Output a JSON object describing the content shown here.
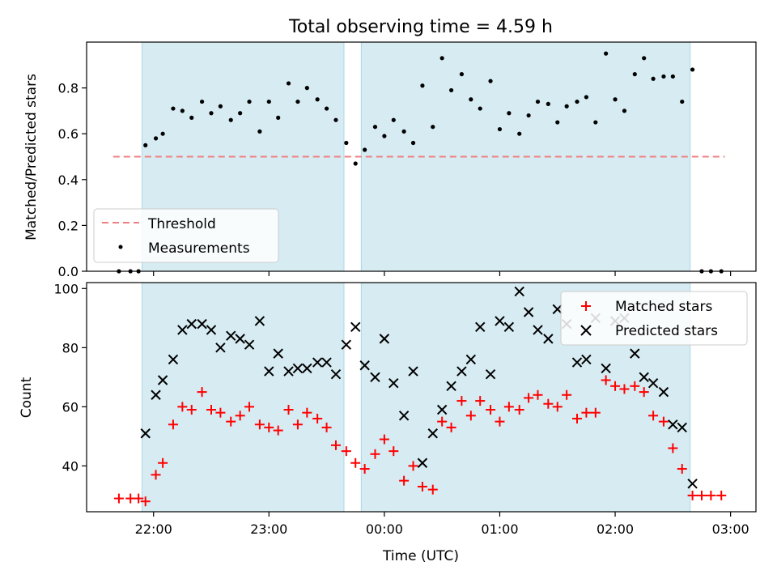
{
  "chart_data": [
    {
      "type": "scatter",
      "title": "Total observing time = 4.59 h",
      "ylabel": "Matched/Predicted stars",
      "xlabel": "",
      "ylim": [
        0,
        1
      ],
      "yticks": [
        0.0,
        0.2,
        0.4,
        0.6,
        0.8
      ],
      "ytick_labels": [
        "0.0",
        "0.2",
        "0.4",
        "0.6",
        "0.8"
      ],
      "grid": false,
      "legend_position": "lower-left",
      "shaded_intervals_hours": [
        [
          21.9,
          23.65
        ],
        [
          23.8,
          26.65
        ]
      ],
      "threshold": {
        "name": "Threshold",
        "value": 0.5,
        "x_range": [
          21.65,
          26.95
        ],
        "color": "#f08080"
      },
      "series": [
        {
          "name": "Measurements",
          "marker": "dot",
          "color": "#000000",
          "x": [
            21.7,
            21.8,
            21.87,
            21.93,
            22.02,
            22.08,
            22.17,
            22.25,
            22.33,
            22.42,
            22.5,
            22.58,
            22.67,
            22.75,
            22.83,
            22.92,
            23.0,
            23.08,
            23.17,
            23.25,
            23.33,
            23.42,
            23.5,
            23.58,
            23.67,
            23.75,
            23.83,
            23.92,
            24.0,
            24.08,
            24.17,
            24.25,
            24.33,
            24.42,
            24.5,
            24.58,
            24.67,
            24.75,
            24.83,
            24.92,
            25.0,
            25.08,
            25.17,
            25.25,
            25.33,
            25.42,
            25.5,
            25.58,
            25.67,
            25.75,
            25.83,
            25.92,
            26.0,
            26.08,
            26.17,
            26.25,
            26.33,
            26.42,
            26.5,
            26.58,
            26.67,
            26.75,
            26.83,
            26.92
          ],
          "y": [
            0.0,
            0.0,
            0.0,
            0.55,
            0.58,
            0.6,
            0.71,
            0.7,
            0.67,
            0.74,
            0.69,
            0.72,
            0.66,
            0.69,
            0.74,
            0.61,
            0.74,
            0.67,
            0.82,
            0.74,
            0.8,
            0.75,
            0.71,
            0.66,
            0.56,
            0.47,
            0.53,
            0.63,
            0.59,
            0.66,
            0.61,
            0.56,
            0.81,
            0.63,
            0.93,
            0.79,
            0.86,
            0.75,
            0.71,
            0.83,
            0.62,
            0.69,
            0.6,
            0.68,
            0.74,
            0.73,
            0.65,
            0.72,
            0.74,
            0.76,
            0.65,
            0.95,
            0.75,
            0.7,
            0.86,
            0.93,
            0.84,
            0.85,
            0.85,
            0.74,
            0.88,
            0.0,
            0.0,
            0.0
          ]
        }
      ]
    },
    {
      "type": "scatter",
      "title": "",
      "ylabel": "Count",
      "xlabel": "Time (UTC)",
      "xlim": [
        21.42,
        27.22
      ],
      "ylim": [
        24.5,
        102
      ],
      "yticks": [
        40,
        60,
        80,
        100
      ],
      "ytick_labels": [
        "40",
        "60",
        "80",
        "100"
      ],
      "xticks": [
        22,
        23,
        24,
        25,
        26,
        27
      ],
      "xtick_labels": [
        "22:00",
        "23:00",
        "00:00",
        "01:00",
        "02:00",
        "03:00"
      ],
      "grid": false,
      "legend_position": "upper-right",
      "shaded_intervals_hours": [
        [
          21.9,
          23.65
        ],
        [
          23.8,
          26.65
        ]
      ],
      "series": [
        {
          "name": "Matched stars",
          "marker": "plus",
          "color": "#ff0000",
          "x": [
            21.7,
            21.8,
            21.87,
            21.93,
            22.02,
            22.08,
            22.17,
            22.25,
            22.33,
            22.42,
            22.5,
            22.58,
            22.67,
            22.75,
            22.83,
            22.92,
            23.0,
            23.08,
            23.17,
            23.25,
            23.33,
            23.42,
            23.5,
            23.58,
            23.67,
            23.75,
            23.83,
            23.92,
            24.0,
            24.08,
            24.17,
            24.25,
            24.33,
            24.42,
            24.5,
            24.58,
            24.67,
            24.75,
            24.83,
            24.92,
            25.0,
            25.08,
            25.17,
            25.25,
            25.33,
            25.42,
            25.5,
            25.58,
            25.67,
            25.75,
            25.83,
            25.92,
            26.0,
            26.08,
            26.17,
            26.25,
            26.33,
            26.42,
            26.5,
            26.58,
            26.67,
            26.75,
            26.83,
            26.92
          ],
          "y": [
            29,
            29,
            29,
            28,
            37,
            41,
            54,
            60,
            59,
            65,
            59,
            58,
            55,
            57,
            60,
            54,
            53,
            52,
            59,
            54,
            58,
            56,
            53,
            47,
            45,
            41,
            39,
            44,
            49,
            45,
            35,
            40,
            33,
            32,
            55,
            53,
            62,
            57,
            62,
            59,
            55,
            60,
            59,
            63,
            64,
            61,
            60,
            64,
            56,
            58,
            58,
            69,
            67,
            66,
            67,
            65,
            57,
            55,
            46,
            39,
            30,
            30,
            30,
            30
          ]
        },
        {
          "name": "Predicted stars",
          "marker": "x",
          "color": "#000000",
          "x": [
            21.93,
            22.02,
            22.08,
            22.17,
            22.25,
            22.33,
            22.42,
            22.5,
            22.58,
            22.67,
            22.75,
            22.83,
            22.92,
            23.0,
            23.08,
            23.17,
            23.25,
            23.33,
            23.42,
            23.5,
            23.58,
            23.67,
            23.75,
            23.83,
            23.92,
            24.0,
            24.08,
            24.17,
            24.25,
            24.33,
            24.42,
            24.5,
            24.58,
            24.67,
            24.75,
            24.83,
            24.92,
            25.0,
            25.08,
            25.17,
            25.25,
            25.33,
            25.42,
            25.5,
            25.58,
            25.67,
            25.75,
            25.83,
            25.92,
            26.0,
            26.08,
            26.17,
            26.25,
            26.33,
            26.42,
            26.5,
            26.58,
            26.67
          ],
          "y": [
            51,
            64,
            69,
            76,
            86,
            88,
            88,
            86,
            80,
            84,
            83,
            81,
            89,
            72,
            78,
            72,
            73,
            73,
            75,
            75,
            71,
            81,
            87,
            74,
            70,
            83,
            68,
            57,
            72,
            41,
            51,
            59,
            67,
            72,
            76,
            87,
            71,
            89,
            87,
            99,
            92,
            86,
            83,
            93,
            88,
            75,
            76,
            90,
            73,
            89,
            90,
            78,
            70,
            68,
            65,
            54,
            53,
            34
          ]
        }
      ]
    }
  ]
}
